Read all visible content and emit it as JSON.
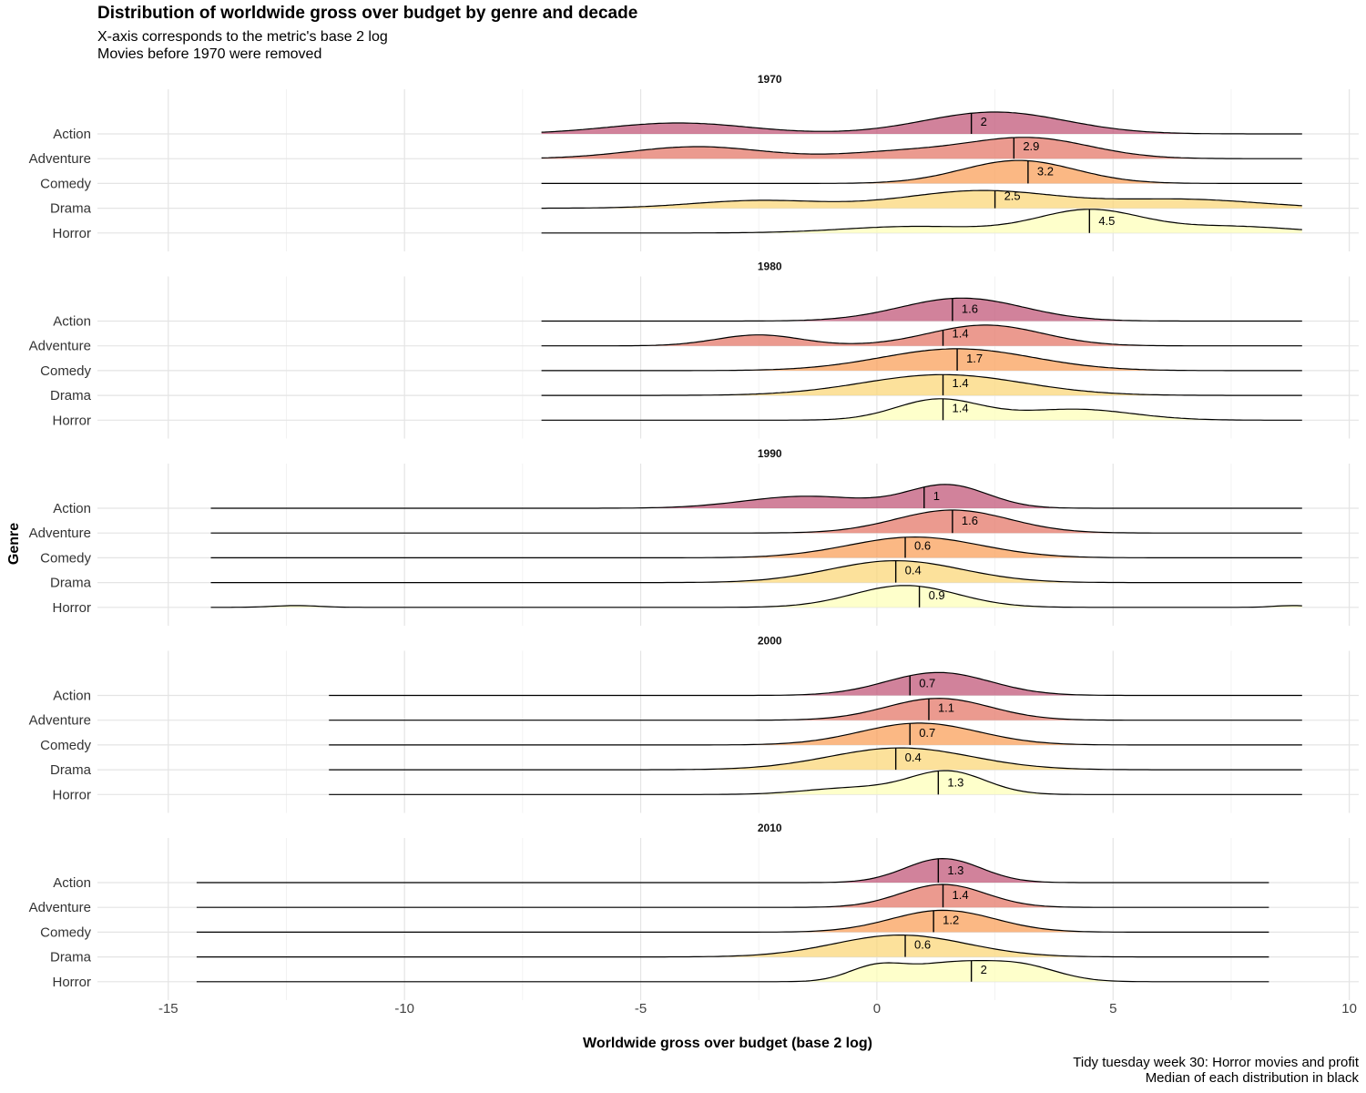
{
  "title": "Distribution of worldwide gross over budget by genre and decade",
  "subtitle": [
    "X-axis corresponds to the metric's base 2 log",
    "Movies before 1970 were removed"
  ],
  "caption": [
    "Tidy tuesday week 30: Horror movies and profit",
    "Median of each distribution in black"
  ],
  "chart_data": {
    "type": "area",
    "subtype": "ridgeline-density",
    "xlabel": "Worldwide gross over budget (base 2 log)",
    "ylabel": "Genre",
    "xlim": [
      -16.5,
      10.2
    ],
    "x_ticks": [
      -15,
      -10,
      -5,
      0,
      5,
      10
    ],
    "grid": true,
    "genres": [
      "Action",
      "Adventure",
      "Comedy",
      "Drama",
      "Horror"
    ],
    "colors": {
      "Action": "#c1587a",
      "Adventure": "#e4786a",
      "Comedy": "#f9a05b",
      "Drama": "#fbd77a",
      "Horror": "#feffba"
    },
    "facets": [
      {
        "decade": "1970",
        "range": [
          -7.1,
          9.0
        ],
        "series": [
          {
            "genre": "Action",
            "median": 2,
            "median_label": "2",
            "peaks": [
              [
                -4.2,
                0.5,
                1.5
              ],
              [
                2.5,
                1.0,
                1.5
              ]
            ]
          },
          {
            "genre": "Adventure",
            "median": 2.9,
            "median_label": "2.9",
            "peaks": [
              [
                -3.8,
                0.55,
                1.4
              ],
              [
                0.5,
                0.3,
                1.2
              ],
              [
                3.2,
                0.95,
                1.3
              ]
            ]
          },
          {
            "genre": "Comedy",
            "median": 3.2,
            "median_label": "3.2",
            "peaks": [
              [
                3.0,
                1.05,
                1.2
              ]
            ]
          },
          {
            "genre": "Drama",
            "median": 2.5,
            "median_label": "2.5",
            "peaks": [
              [
                -2.5,
                0.35,
                1.4
              ],
              [
                2.2,
                0.8,
                1.6
              ],
              [
                6.5,
                0.4,
                1.6
              ]
            ]
          },
          {
            "genre": "Horror",
            "median": 4.5,
            "median_label": "4.5",
            "peaks": [
              [
                0.8,
                0.3,
                1.5
              ],
              [
                4.5,
                1.05,
                1.1
              ],
              [
                7.5,
                0.3,
                1.3
              ]
            ]
          }
        ]
      },
      {
        "decade": "1980",
        "range": [
          -7.1,
          9.0
        ],
        "series": [
          {
            "genre": "Action",
            "median": 1.6,
            "median_label": "1.6",
            "peaks": [
              [
                1.8,
                1.05,
                1.3
              ]
            ]
          },
          {
            "genre": "Adventure",
            "median": 1.4,
            "median_label": "1.4",
            "peaks": [
              [
                -2.5,
                0.5,
                0.9
              ],
              [
                2.3,
                0.95,
                1.2
              ]
            ]
          },
          {
            "genre": "Comedy",
            "median": 1.7,
            "median_label": "1.7",
            "peaks": [
              [
                1.7,
                1.0,
                1.6
              ]
            ]
          },
          {
            "genre": "Drama",
            "median": 1.4,
            "median_label": "1.4",
            "peaks": [
              [
                1.4,
                0.95,
                1.7
              ]
            ]
          },
          {
            "genre": "Horror",
            "median": 1.4,
            "median_label": "1.4",
            "peaks": [
              [
                1.3,
                0.95,
                0.9
              ],
              [
                4.2,
                0.5,
                1.2
              ]
            ]
          }
        ]
      },
      {
        "decade": "1990",
        "range": [
          -14.1,
          9.0
        ],
        "series": [
          {
            "genre": "Action",
            "median": 1,
            "median_label": "1",
            "peaks": [
              [
                -1.5,
                0.55,
                1.3
              ],
              [
                1.5,
                1.05,
                0.85
              ]
            ]
          },
          {
            "genre": "Adventure",
            "median": 1.6,
            "median_label": "1.6",
            "peaks": [
              [
                1.6,
                1.05,
                1.2
              ]
            ]
          },
          {
            "genre": "Comedy",
            "median": 0.6,
            "median_label": "0.6",
            "peaks": [
              [
                0.8,
                0.95,
                1.4
              ]
            ]
          },
          {
            "genre": "Drama",
            "median": 0.4,
            "median_label": "0.4",
            "peaks": [
              [
                0.4,
                1.0,
                1.4
              ]
            ]
          },
          {
            "genre": "Horror",
            "median": 0.9,
            "median_label": "0.9",
            "peaks": [
              [
                -12.3,
                0.08,
                0.5
              ],
              [
                0.6,
                1.0,
                1.1
              ],
              [
                8.8,
                0.08,
                0.4
              ]
            ]
          }
        ]
      },
      {
        "decade": "2000",
        "range": [
          -11.6,
          9.0
        ],
        "series": [
          {
            "genre": "Action",
            "median": 0.7,
            "median_label": "0.7",
            "peaks": [
              [
                1.3,
                1.05,
                1.1
              ]
            ]
          },
          {
            "genre": "Adventure",
            "median": 1.1,
            "median_label": "1.1",
            "peaks": [
              [
                1.3,
                1.0,
                1.1
              ]
            ]
          },
          {
            "genre": "Comedy",
            "median": 0.7,
            "median_label": "0.7",
            "peaks": [
              [
                0.9,
                1.0,
                1.25
              ]
            ]
          },
          {
            "genre": "Drama",
            "median": 0.4,
            "median_label": "0.4",
            "peaks": [
              [
                0.5,
                1.0,
                1.5
              ]
            ]
          },
          {
            "genre": "Horror",
            "median": 1.3,
            "median_label": "1.3",
            "peaks": [
              [
                1.5,
                1.05,
                0.8
              ],
              [
                -0.5,
                0.3,
                1.0
              ]
            ]
          }
        ]
      },
      {
        "decade": "2010",
        "range": [
          -14.4,
          8.3
        ],
        "series": [
          {
            "genre": "Action",
            "median": 1.3,
            "median_label": "1.3",
            "peaks": [
              [
                1.4,
                1.1,
                0.8
              ]
            ]
          },
          {
            "genre": "Adventure",
            "median": 1.4,
            "median_label": "1.4",
            "peaks": [
              [
                1.4,
                1.05,
                0.9
              ]
            ]
          },
          {
            "genre": "Comedy",
            "median": 1.2,
            "median_label": "1.2",
            "peaks": [
              [
                1.4,
                1.0,
                1.1
              ]
            ]
          },
          {
            "genre": "Drama",
            "median": 0.6,
            "median_label": "0.6",
            "peaks": [
              [
                0.5,
                1.0,
                1.4
              ]
            ]
          },
          {
            "genre": "Horror",
            "median": 2,
            "median_label": "2",
            "peaks": [
              [
                0.0,
                0.7,
                0.6
              ],
              [
                1.5,
                0.75,
                0.8
              ],
              [
                3.0,
                0.75,
                0.8
              ]
            ]
          }
        ]
      }
    ]
  }
}
